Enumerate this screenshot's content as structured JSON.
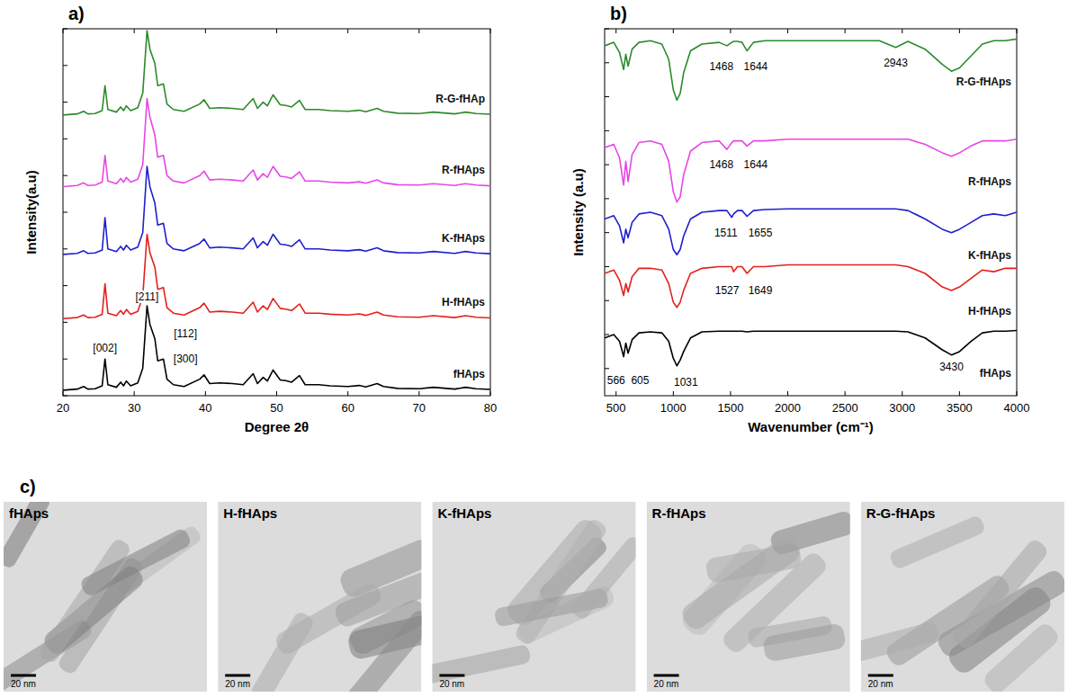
{
  "chart_data": [
    {
      "type": "line",
      "panel": "a)",
      "x_label": "Degree 2θ",
      "y_label": "Intensity(a.u)",
      "x": [
        20,
        22,
        22.9,
        23.5,
        24.5,
        25.5,
        25.9,
        26.3,
        27.5,
        28.1,
        28.5,
        28.9,
        29.5,
        30.5,
        31.2,
        31.8,
        32.2,
        32.9,
        33.3,
        34.1,
        34.6,
        35.5,
        37,
        39.2,
        39.8,
        40.6,
        42,
        43.8,
        45.3,
        46.7,
        47.3,
        48.1,
        48.7,
        49.5,
        50.5,
        51.3,
        52.1,
        53.2,
        54,
        55.9,
        57.5,
        60,
        61.6,
        62.5,
        64.1,
        65,
        67,
        70,
        72,
        75,
        76.5,
        78,
        80
      ],
      "series": [
        {
          "name": "fHAps",
          "color": "#000000",
          "values": [
            1.5,
            1.8,
            2.5,
            1.8,
            1.9,
            2.7,
            10,
            3,
            2.3,
            3.7,
            2.7,
            4,
            2.7,
            3.5,
            7.5,
            24.5,
            19.5,
            15.5,
            9.5,
            10,
            4.5,
            3,
            2.5,
            4.5,
            5.7,
            3.3,
            3.5,
            3.3,
            3,
            6,
            3.3,
            5,
            4,
            7,
            4.3,
            4.1,
            3.7,
            5.5,
            3,
            3,
            2.7,
            2.5,
            2.8,
            2.4,
            3.3,
            2.5,
            2,
            1.9,
            2.3,
            1.8,
            2.3,
            1.9,
            1.7
          ]
        },
        {
          "name": "H-fHAps",
          "color": "#e3201b",
          "values": [
            21,
            21.3,
            22,
            21.3,
            21.4,
            22.2,
            30.5,
            22.5,
            21.8,
            23.2,
            22.2,
            23.5,
            22.2,
            23,
            27,
            44,
            39,
            35,
            29,
            29.5,
            24,
            22.5,
            22,
            24,
            25.2,
            22.8,
            23,
            22.8,
            22.5,
            25.5,
            22.8,
            24.5,
            23.5,
            26.5,
            23.8,
            23.6,
            23.2,
            25,
            22.5,
            22.5,
            22.2,
            22,
            22.3,
            21.9,
            22.8,
            22,
            21.5,
            21.4,
            21.8,
            21.3,
            21.8,
            21.4,
            21.2
          ]
        },
        {
          "name": "K-fHAps",
          "color": "#1f1fcf",
          "values": [
            38.5,
            38.8,
            39.5,
            38.8,
            38.9,
            39.7,
            48.5,
            40,
            39.3,
            40.7,
            39.7,
            41,
            39.7,
            40.5,
            44.5,
            62.5,
            57,
            52.5,
            46.5,
            47,
            41.5,
            40,
            39.5,
            41.5,
            42.7,
            40.3,
            40.5,
            40.3,
            40,
            43,
            40.3,
            42,
            41,
            44,
            41.3,
            41.1,
            40.7,
            42.5,
            40,
            40,
            39.7,
            39.5,
            39.8,
            39.4,
            40.3,
            39.5,
            39,
            38.9,
            39.3,
            38.8,
            39.3,
            38.9,
            38.7
          ]
        },
        {
          "name": "R-fHAps",
          "color": "#e646e6",
          "values": [
            57,
            57.3,
            58,
            57.3,
            57.4,
            58.2,
            65.5,
            58.5,
            57.8,
            59.2,
            58.2,
            59.5,
            58.2,
            59,
            63,
            81,
            76,
            71,
            65,
            65.5,
            60,
            58.5,
            58,
            60,
            61.2,
            58.8,
            59,
            58.8,
            58.5,
            61.5,
            58.8,
            60.5,
            59.5,
            62.5,
            59.8,
            59.6,
            59.2,
            61,
            58.5,
            58.5,
            58.2,
            58,
            58.3,
            57.9,
            58.8,
            58,
            57.5,
            57.4,
            57.8,
            57.3,
            57.8,
            57.4,
            57.2
          ]
        },
        {
          "name": "R-G-fHAp",
          "color": "#2b8a2b",
          "values": [
            76.5,
            76.8,
            77.5,
            76.8,
            76.9,
            77.7,
            84.5,
            78,
            77.3,
            78.7,
            77.7,
            79,
            77.7,
            78.5,
            82.5,
            99.5,
            94.5,
            90.5,
            84.5,
            85,
            79.5,
            78,
            77.5,
            79.5,
            80.7,
            78.3,
            78.5,
            78.3,
            78,
            81,
            78.3,
            80,
            79,
            82,
            79.3,
            79.1,
            78.7,
            80.5,
            78,
            78,
            77.7,
            77.5,
            77.8,
            77.4,
            78.3,
            77.5,
            77,
            76.9,
            77.3,
            76.8,
            77.3,
            76.9,
            76.7
          ]
        }
      ],
      "xlim": [
        20,
        80
      ],
      "xticks": [
        20,
        30,
        40,
        50,
        60,
        70,
        80
      ],
      "ylim": [
        0,
        100
      ],
      "yticks": [
        0,
        10,
        20,
        30,
        40,
        50,
        60,
        70,
        80,
        90,
        100
      ],
      "tick_labels": "x",
      "grid": false,
      "annotations": [
        {
          "text": "[002]",
          "x": 25.9,
          "y": 13
        },
        {
          "text": "[211]",
          "x": 31.8,
          "y": 27
        },
        {
          "text": "[112]",
          "x": 37.2,
          "y": 17
        },
        {
          "text": "[300]",
          "x": 37.2,
          "y": 10
        }
      ]
    },
    {
      "type": "line",
      "panel": "b)",
      "x_label": "Wavenumber (cm⁻¹)",
      "y_label": "Intensity (a.u)",
      "x": [
        400,
        480,
        530,
        566,
        585,
        605,
        640,
        700,
        800,
        900,
        960,
        1000,
        1031,
        1060,
        1090,
        1150,
        1250,
        1400,
        1468,
        1511,
        1527,
        1560,
        1600,
        1644,
        1700,
        1800,
        2000,
        2300,
        2500,
        2800,
        2943,
        3050,
        3200,
        3350,
        3430,
        3500,
        3600,
        3700,
        3800,
        3900,
        4000
      ],
      "series": [
        {
          "name": "fHAps",
          "color": "#000000",
          "values": [
            9,
            10,
            8,
            3.5,
            7.5,
            4.5,
            8.5,
            10.5,
            10.8,
            10.5,
            8,
            3,
            0.8,
            2.5,
            5,
            9,
            10.8,
            11,
            11,
            11,
            11,
            11,
            11,
            10.8,
            11,
            11,
            11,
            11,
            11,
            11,
            11,
            10.8,
            9,
            5.5,
            4,
            5,
            8,
            10.5,
            11,
            11,
            11.2
          ]
        },
        {
          "name": "H-fHAps",
          "color": "#e3201b",
          "values": [
            28,
            29,
            26,
            21.5,
            25,
            22.5,
            27,
            29.5,
            29.5,
            29,
            25,
            19.5,
            18,
            19.5,
            23,
            28,
            29.5,
            30,
            30,
            30,
            28.5,
            30,
            30,
            28,
            30,
            30,
            30.5,
            30.5,
            30.5,
            30.5,
            30.5,
            30,
            28,
            24,
            23,
            24,
            26.5,
            29,
            28.5,
            29.5,
            29.5
          ]
        },
        {
          "name": "K-fHAps",
          "color": "#1f1fcf",
          "values": [
            44,
            45,
            42,
            37,
            41,
            38.5,
            43,
            45.5,
            46,
            45,
            41,
            35,
            33.5,
            35,
            39,
            44,
            46,
            46.5,
            46.5,
            44.5,
            45.5,
            46.5,
            46.5,
            44.8,
            46.5,
            46.8,
            47,
            47,
            47,
            47,
            47,
            46.5,
            44,
            41,
            40,
            41,
            43,
            45,
            45.5,
            45,
            46
          ]
        },
        {
          "name": "R-fHAps",
          "color": "#e646e6",
          "values": [
            65,
            66,
            62,
            54,
            61,
            55,
            63,
            66.5,
            67,
            66,
            61,
            52,
            49,
            50.5,
            57,
            64,
            66.5,
            67,
            64.5,
            66.5,
            67,
            67,
            67,
            65.5,
            67,
            67,
            67.5,
            67.5,
            67.5,
            67.5,
            67.5,
            67.5,
            66,
            63.5,
            62.5,
            63.5,
            65.5,
            67,
            67,
            67,
            67.5
          ]
        },
        {
          "name": "R-G-fHAps",
          "color": "#2b8a2b",
          "values": [
            95,
            96,
            93,
            88,
            92.5,
            89,
            94,
            96,
            96.5,
            95.5,
            91,
            82,
            79,
            81,
            87,
            93.5,
            95.5,
            96,
            95,
            96,
            96.3,
            96.3,
            96,
            93.5,
            96,
            96.5,
            96.5,
            96.5,
            96.5,
            96.5,
            94.5,
            96.3,
            94,
            89.5,
            87.5,
            88.5,
            92,
            95.5,
            96.5,
            96.5,
            97
          ]
        }
      ],
      "xlim": [
        400,
        4000
      ],
      "xticks": [
        500,
        1000,
        1500,
        2000,
        2500,
        3000,
        3500,
        4000
      ],
      "ylim": [
        -8,
        100
      ],
      "yticks": [
        0,
        10,
        20,
        30,
        40,
        50,
        60,
        70,
        80,
        90,
        100
      ],
      "tick_labels": "x",
      "grid": false,
      "annotations": [
        {
          "text": "566",
          "x": 500,
          "y": -3.5
        },
        {
          "text": "605",
          "x": 710,
          "y": -3.5
        },
        {
          "text": "1031",
          "x": 1110,
          "y": -4
        },
        {
          "text": "3430",
          "x": 3430,
          "y": 0.5
        },
        {
          "text": "1527",
          "x": 1470,
          "y": 23
        },
        {
          "text": "1649",
          "x": 1760,
          "y": 23
        },
        {
          "text": "1511",
          "x": 1460,
          "y": 40
        },
        {
          "text": "1655",
          "x": 1760,
          "y": 40
        },
        {
          "text": "1468",
          "x": 1420,
          "y": 60
        },
        {
          "text": "1644",
          "x": 1720,
          "y": 60
        },
        {
          "text": "1468",
          "x": 1420,
          "y": 89
        },
        {
          "text": "1644",
          "x": 1720,
          "y": 89
        },
        {
          "text": "2943",
          "x": 2943,
          "y": 90
        }
      ]
    }
  ],
  "tem_panel": {
    "panel": "c)",
    "images": [
      {
        "label": "fHAps",
        "scale_bar": "20 nm"
      },
      {
        "label": "H-fHAps",
        "scale_bar": "20 nm"
      },
      {
        "label": "K-fHAps",
        "scale_bar": "20 nm"
      },
      {
        "label": "R-fHAps",
        "scale_bar": "20 nm"
      },
      {
        "label": "R-G-fHAps",
        "scale_bar": "20 nm"
      }
    ]
  }
}
